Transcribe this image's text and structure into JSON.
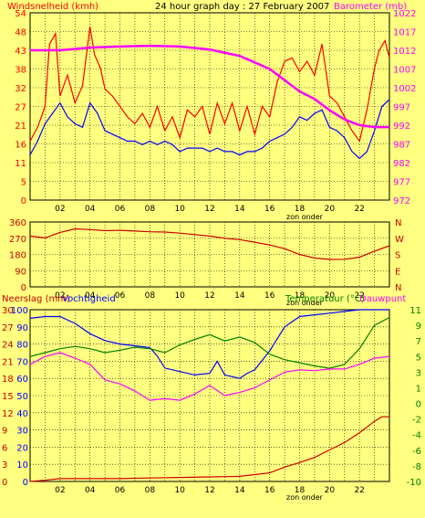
{
  "chart_data": [
    {
      "type": "line",
      "title": "24 hour graph day : 27 February 2007",
      "left_axis_label": "Windsnelheid (kmh)",
      "right_axis_label": "Barometer (mb)",
      "left_ticks": [
        0,
        5,
        11,
        16,
        21,
        27,
        32,
        38,
        43,
        48,
        54
      ],
      "right_ticks": [
        972,
        977,
        982,
        987,
        992,
        997,
        1002,
        1007,
        1012,
        1017,
        1022
      ],
      "ylim_left": [
        0,
        54
      ],
      "ylim_right": [
        972,
        1022
      ],
      "x_ticks": [
        "02",
        "04",
        "06",
        "08",
        "10",
        "12",
        "14",
        "16",
        "18",
        "20",
        "22"
      ],
      "x_note": "zon onder",
      "xlim_hours": [
        0,
        24
      ],
      "series": [
        {
          "color": "#ff0000",
          "points": [
            [
              0,
              17
            ],
            [
              0.5,
              21
            ],
            [
              1,
              27
            ],
            [
              1.3,
              45
            ],
            [
              1.7,
              48
            ],
            [
              2,
              30
            ],
            [
              2.5,
              36
            ],
            [
              3,
              28
            ],
            [
              3.5,
              33
            ],
            [
              4,
              50
            ],
            [
              4.3,
              42
            ],
            [
              4.7,
              38
            ],
            [
              5,
              32
            ],
            [
              5.5,
              30
            ],
            [
              6,
              27
            ],
            [
              6.5,
              24
            ],
            [
              7,
              22
            ],
            [
              7.5,
              25
            ],
            [
              8,
              21
            ],
            [
              8.5,
              27
            ],
            [
              9,
              20
            ],
            [
              9.5,
              24
            ],
            [
              10,
              18
            ],
            [
              10.5,
              26
            ],
            [
              11,
              24
            ],
            [
              11.5,
              27
            ],
            [
              12,
              19
            ],
            [
              12.5,
              28
            ],
            [
              13,
              22
            ],
            [
              13.5,
              28
            ],
            [
              14,
              20
            ],
            [
              14.5,
              27
            ],
            [
              15,
              19
            ],
            [
              15.5,
              27
            ],
            [
              16,
              24
            ],
            [
              16.5,
              34
            ],
            [
              17,
              40
            ],
            [
              17.5,
              41
            ],
            [
              18,
              37
            ],
            [
              18.5,
              40
            ],
            [
              19,
              36
            ],
            [
              19.5,
              45
            ],
            [
              20,
              30
            ],
            [
              20.5,
              28
            ],
            [
              21,
              24
            ],
            [
              21.5,
              20
            ],
            [
              22,
              17
            ],
            [
              22.5,
              26
            ],
            [
              23,
              38
            ],
            [
              23.3,
              43
            ],
            [
              23.7,
              46
            ],
            [
              24,
              41
            ]
          ]
        },
        {
          "color": "#0000ff",
          "points": [
            [
              0,
              13
            ],
            [
              0.5,
              17
            ],
            [
              1,
              22
            ],
            [
              1.5,
              25
            ],
            [
              2,
              28
            ],
            [
              2.5,
              24
            ],
            [
              3,
              22
            ],
            [
              3.5,
              21
            ],
            [
              4,
              28
            ],
            [
              4.5,
              25
            ],
            [
              5,
              20
            ],
            [
              5.5,
              19
            ],
            [
              6,
              18
            ],
            [
              6.5,
              17
            ],
            [
              7,
              17
            ],
            [
              7.5,
              16
            ],
            [
              8,
              17
            ],
            [
              8.5,
              16
            ],
            [
              9,
              17
            ],
            [
              9.5,
              16
            ],
            [
              10,
              14
            ],
            [
              10.5,
              15
            ],
            [
              11,
              15
            ],
            [
              11.5,
              15
            ],
            [
              12,
              14
            ],
            [
              12.5,
              15
            ],
            [
              13,
              14
            ],
            [
              13.5,
              14
            ],
            [
              14,
              13
            ],
            [
              14.5,
              14
            ],
            [
              15,
              14
            ],
            [
              15.5,
              15
            ],
            [
              16,
              17
            ],
            [
              16.5,
              18
            ],
            [
              17,
              19
            ],
            [
              17.5,
              21
            ],
            [
              18,
              24
            ],
            [
              18.5,
              23
            ],
            [
              19,
              25
            ],
            [
              19.5,
              26
            ],
            [
              20,
              21
            ],
            [
              20.5,
              20
            ],
            [
              21,
              18
            ],
            [
              21.5,
              14
            ],
            [
              22,
              12
            ],
            [
              22.5,
              14
            ],
            [
              23,
              20
            ],
            [
              23.5,
              27
            ],
            [
              24,
              29
            ]
          ]
        },
        {
          "color": "#ff00ff",
          "axis": "right",
          "points": [
            [
              0,
              1012
            ],
            [
              2,
              1012
            ],
            [
              4,
              1012.7
            ],
            [
              6,
              1013
            ],
            [
              8,
              1013.2
            ],
            [
              10,
              1013
            ],
            [
              12,
              1012.2
            ],
            [
              14,
              1010.5
            ],
            [
              16,
              1007
            ],
            [
              17,
              1004
            ],
            [
              18,
              1001
            ],
            [
              19,
              999
            ],
            [
              20,
              996
            ],
            [
              21,
              993.5
            ],
            [
              22,
              992
            ],
            [
              23,
              991.5
            ],
            [
              24,
              991.5
            ]
          ]
        }
      ]
    },
    {
      "type": "line",
      "left_ticks": [
        0,
        90,
        180,
        270,
        360
      ],
      "right_ticks": [
        "N",
        "W",
        "S",
        "E",
        "N"
      ],
      "ylim": [
        0,
        360
      ],
      "x_ticks": [
        "02",
        "04",
        "06",
        "08",
        "10",
        "12",
        "14",
        "16",
        "18",
        "20",
        "22"
      ],
      "x_note": "zon onder",
      "xlim_hours": [
        0,
        24
      ],
      "series": [
        {
          "color": "#cc0000",
          "points": [
            [
              0,
              282
            ],
            [
              1,
              272
            ],
            [
              2,
              302
            ],
            [
              3,
              322
            ],
            [
              4,
              318
            ],
            [
              5,
              312
            ],
            [
              6,
              314
            ],
            [
              7,
              310
            ],
            [
              8,
              306
            ],
            [
              9,
              304
            ],
            [
              10,
              298
            ],
            [
              11,
              290
            ],
            [
              12,
              282
            ],
            [
              13,
              270
            ],
            [
              14,
              262
            ],
            [
              15,
              248
            ],
            [
              16,
              232
            ],
            [
              17,
              212
            ],
            [
              18,
              180
            ],
            [
              19,
              160
            ],
            [
              20,
              152
            ],
            [
              21,
              153
            ],
            [
              22,
              165
            ],
            [
              23,
              198
            ],
            [
              24,
              228
            ]
          ]
        }
      ]
    },
    {
      "type": "line",
      "left_axis_label_1": "Neerslag (mm)",
      "left_axis_label_2": "Vochtigheid",
      "right_axis_label_1": "Temperatuur (°C)",
      "right_axis_label_2": "Dauwpunt",
      "precip_ticks": [
        0,
        3,
        6,
        9,
        12,
        15,
        18,
        21,
        24,
        27,
        30
      ],
      "humidity_ticks": [
        0,
        10,
        20,
        30,
        40,
        50,
        60,
        70,
        80,
        90,
        100
      ],
      "temp_ticks": [
        -10,
        -8,
        -6,
        -4,
        -2,
        0,
        1,
        3,
        5,
        7,
        9,
        11
      ],
      "x_ticks": [
        "02",
        "04",
        "06",
        "08",
        "10",
        "12",
        "14",
        "16",
        "18",
        "20",
        "22"
      ],
      "x_note": "zon onder",
      "xlim_hours": [
        0,
        24
      ],
      "series": [
        {
          "color": "#0000ff",
          "note": "humidity %",
          "points": [
            [
              0,
              95
            ],
            [
              1,
              96
            ],
            [
              2,
              96
            ],
            [
              3,
              92
            ],
            [
              4,
              86
            ],
            [
              5,
              82
            ],
            [
              6,
              80
            ],
            [
              7,
              79
            ],
            [
              8,
              78
            ],
            [
              8.5,
              73
            ],
            [
              9,
              66
            ],
            [
              10,
              64
            ],
            [
              11,
              62
            ],
            [
              12,
              63
            ],
            [
              12.5,
              70
            ],
            [
              13,
              62
            ],
            [
              14,
              60
            ],
            [
              14.5,
              63
            ],
            [
              15,
              65
            ],
            [
              16,
              76
            ],
            [
              17,
              90
            ],
            [
              18,
              96
            ],
            [
              19,
              97
            ],
            [
              20,
              98
            ],
            [
              21,
              99
            ],
            [
              22,
              100
            ],
            [
              23,
              100
            ],
            [
              24,
              100
            ]
          ]
        },
        {
          "color": "#008000",
          "note": "temperature °C",
          "points": [
            [
              0,
              5
            ],
            [
              1,
              5.5
            ],
            [
              2,
              6
            ],
            [
              3,
              6.3
            ],
            [
              4,
              6
            ],
            [
              5,
              5.5
            ],
            [
              6,
              5.8
            ],
            [
              7,
              6.2
            ],
            [
              8,
              6
            ],
            [
              9,
              5.5
            ],
            [
              10,
              6.5
            ],
            [
              11,
              7.2
            ],
            [
              12,
              7.8
            ],
            [
              13,
              7
            ],
            [
              14,
              7.5
            ],
            [
              15,
              6.8
            ],
            [
              16,
              5.3
            ],
            [
              17,
              4.6
            ],
            [
              18,
              4.2
            ],
            [
              19,
              3.8
            ],
            [
              20,
              3.5
            ],
            [
              21,
              4
            ],
            [
              22,
              6
            ],
            [
              23,
              9
            ],
            [
              24,
              10
            ]
          ]
        },
        {
          "color": "#ff00ff",
          "note": "dew point °C",
          "points": [
            [
              0,
              4
            ],
            [
              1,
              5
            ],
            [
              2,
              5.5
            ],
            [
              3,
              4.8
            ],
            [
              4,
              4
            ],
            [
              5,
              2
            ],
            [
              6,
              1.5
            ],
            [
              7,
              0.8
            ],
            [
              8,
              0.2
            ],
            [
              9,
              0.3
            ],
            [
              10,
              0.2
            ],
            [
              11,
              0.6
            ],
            [
              12,
              1.3
            ],
            [
              13,
              0.5
            ],
            [
              14,
              0.7
            ],
            [
              15,
              1
            ],
            [
              16,
              2
            ],
            [
              17,
              3
            ],
            [
              18,
              3.3
            ],
            [
              19,
              3.2
            ],
            [
              20,
              3.4
            ],
            [
              21,
              3.4
            ],
            [
              22,
              4
            ],
            [
              23,
              4.8
            ],
            [
              24,
              5
            ]
          ]
        },
        {
          "color": "#cc0000",
          "note": "cumulative precipitation mm",
          "points": [
            [
              0,
              0
            ],
            [
              1,
              0.2
            ],
            [
              2,
              0.5
            ],
            [
              6,
              0.5
            ],
            [
              8,
              0.6
            ],
            [
              10,
              0.7
            ],
            [
              12,
              0.8
            ],
            [
              14,
              0.9
            ],
            [
              15,
              1.2
            ],
            [
              16,
              1.5
            ],
            [
              17,
              2.5
            ],
            [
              18,
              3.3
            ],
            [
              19,
              4.2
            ],
            [
              20,
              5.5
            ],
            [
              21,
              6.8
            ],
            [
              22,
              8.5
            ],
            [
              23,
              10.5
            ],
            [
              23.5,
              11.3
            ],
            [
              24,
              11.3
            ]
          ]
        }
      ]
    }
  ]
}
